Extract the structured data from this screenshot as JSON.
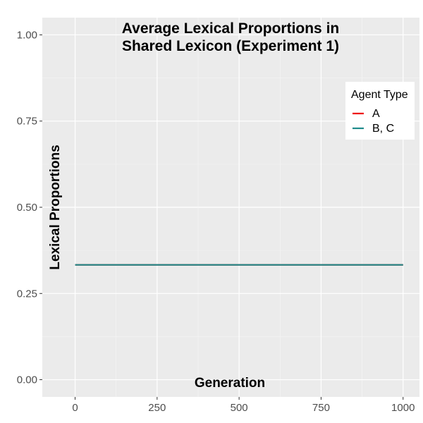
{
  "chart_data": {
    "type": "line",
    "title_line1": "Average Lexical Proportions in",
    "title_line2": "Shared Lexicon (Experiment 1)",
    "xlabel": "Generation",
    "ylabel": "Lexical Proportions",
    "xlim": [
      -100,
      1050
    ],
    "ylim": [
      -0.05,
      1.05
    ],
    "x_ticks": [
      0,
      250,
      500,
      750,
      1000
    ],
    "x_tick_labels": [
      "0",
      "250",
      "500",
      "750",
      "1000"
    ],
    "y_ticks": [
      0,
      0.25,
      0.5,
      0.75,
      1.0
    ],
    "y_tick_labels": [
      "0.00",
      "0.25",
      "0.50",
      "0.75",
      "1.00"
    ],
    "grid": true,
    "legend": {
      "title": "Agent Type",
      "placement": "top-right",
      "items": [
        "A",
        "B, C"
      ]
    },
    "series": [
      {
        "name": "A",
        "color": "#ee0000",
        "x": [
          0,
          1000
        ],
        "y": [
          0.333,
          0.333
        ]
      },
      {
        "name": "B, C",
        "color": "#1f8b8b",
        "x": [
          0,
          1000
        ],
        "y": [
          0.333,
          0.333
        ]
      }
    ],
    "colors": {
      "panel": "#ebebeb",
      "grid_major": "#ffffff",
      "grid_minor": "#f5f5f5"
    }
  }
}
